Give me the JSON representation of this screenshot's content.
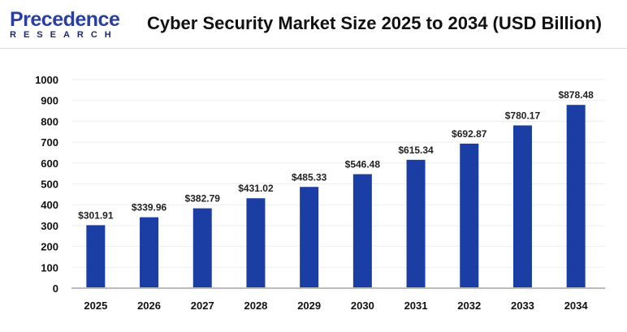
{
  "logo": {
    "line1": "Precedence",
    "line2": "RESEARCH"
  },
  "chart_data": {
    "type": "bar",
    "title": "Cyber Security Market Size 2025 to 2034 (USD Billion)",
    "categories": [
      "2025",
      "2026",
      "2027",
      "2028",
      "2029",
      "2030",
      "2031",
      "2032",
      "2033",
      "2034"
    ],
    "values": [
      301.91,
      339.96,
      382.79,
      431.02,
      485.33,
      546.48,
      615.34,
      692.87,
      780.17,
      878.48
    ],
    "data_labels": [
      "$301.91",
      "$339.96",
      "$382.79",
      "$431.02",
      "$485.33",
      "$546.48",
      "$615.34",
      "$692.87",
      "$780.17",
      "$878.48"
    ],
    "yticks": [
      "0",
      "100",
      "200",
      "300",
      "400",
      "500",
      "600",
      "700",
      "800",
      "900",
      "1000"
    ],
    "ylim": [
      0,
      1000
    ],
    "grid": true,
    "bar_color": "#1a3ea3",
    "xlabel": "",
    "ylabel": ""
  }
}
